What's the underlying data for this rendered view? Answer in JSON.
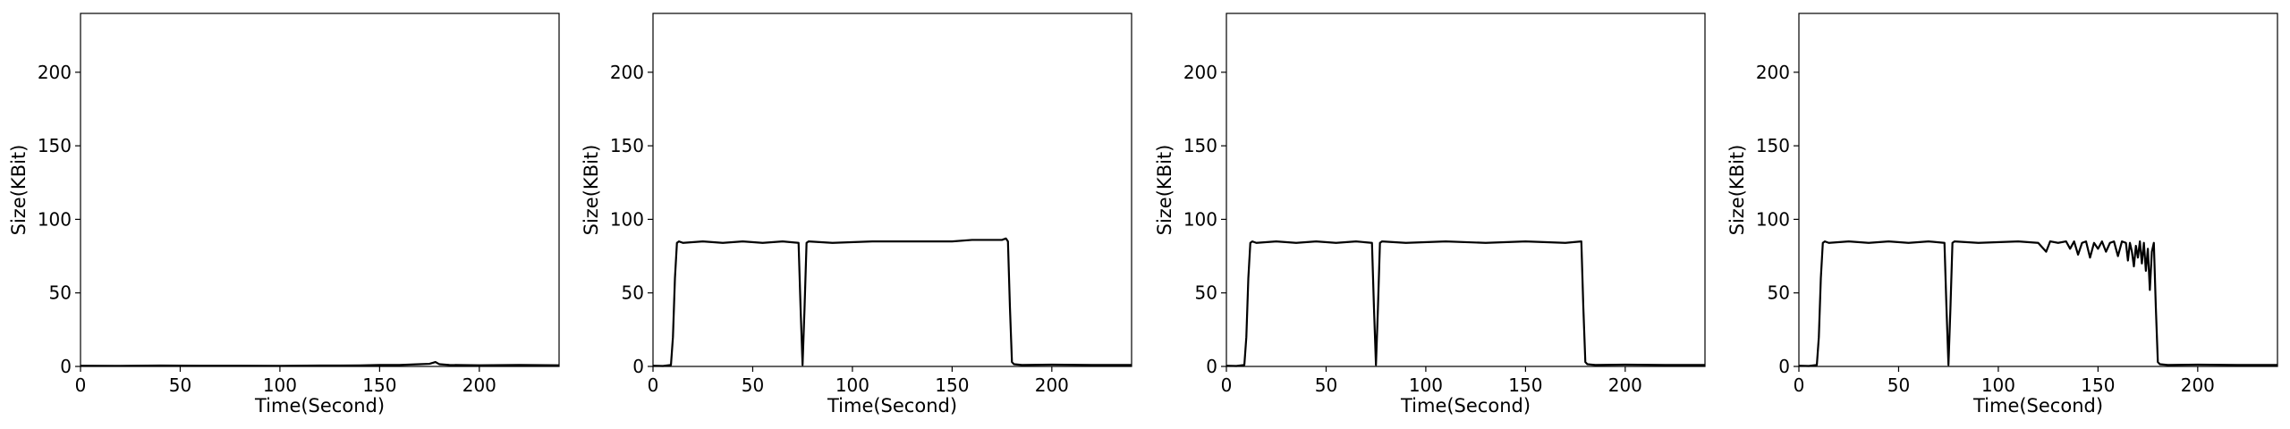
{
  "chart_data": [
    {
      "type": "line",
      "xlabel": "Time(Second)",
      "ylabel": "Size(KBit)",
      "xlim": [
        0,
        240
      ],
      "ylim": [
        0,
        240
      ],
      "xticks": [
        0,
        50,
        100,
        150,
        200
      ],
      "yticks": [
        0,
        50,
        100,
        150,
        200
      ],
      "grid": false,
      "series": [
        {
          "color": "#000000",
          "x": [
            0,
            20,
            40,
            60,
            80,
            100,
            120,
            140,
            150,
            160,
            170,
            175,
            178,
            180,
            185,
            200,
            220,
            240
          ],
          "y": [
            0.5,
            0.4,
            0.6,
            0.5,
            0.5,
            0.4,
            0.6,
            0.7,
            1.0,
            1.0,
            1.5,
            1.8,
            3.0,
            1.5,
            1.0,
            0.8,
            1.0,
            0.8
          ]
        }
      ]
    },
    {
      "type": "line",
      "xlabel": "Time(Second)",
      "ylabel": "Size(KBit)",
      "xlim": [
        0,
        240
      ],
      "ylim": [
        0,
        240
      ],
      "xticks": [
        0,
        50,
        100,
        150,
        200
      ],
      "yticks": [
        0,
        50,
        100,
        150,
        200
      ],
      "grid": false,
      "series": [
        {
          "color": "#000000",
          "x": [
            0,
            5,
            9,
            10,
            11,
            12,
            13,
            15,
            25,
            35,
            45,
            55,
            65,
            73,
            74,
            75,
            76,
            77,
            78,
            90,
            110,
            130,
            150,
            160,
            170,
            175,
            177,
            178,
            179,
            180,
            181,
            185,
            200,
            220,
            240
          ],
          "y": [
            0.5,
            0.3,
            1.0,
            20,
            60,
            84,
            85,
            84,
            85,
            84,
            85,
            84,
            85,
            84,
            40,
            1,
            40,
            84,
            85,
            84,
            85,
            85,
            85,
            86,
            86,
            86,
            87,
            85,
            40,
            3,
            1.5,
            1.0,
            1.2,
            1.0,
            1.0
          ]
        }
      ]
    },
    {
      "type": "line",
      "xlabel": "Time(Second)",
      "ylabel": "Size(KBit)",
      "xlim": [
        0,
        240
      ],
      "ylim": [
        0,
        240
      ],
      "xticks": [
        0,
        50,
        100,
        150,
        200
      ],
      "yticks": [
        0,
        50,
        100,
        150,
        200
      ],
      "grid": false,
      "series": [
        {
          "color": "#000000",
          "x": [
            0,
            5,
            9,
            10,
            11,
            12,
            13,
            15,
            25,
            35,
            45,
            55,
            65,
            73,
            74,
            75,
            76,
            77,
            78,
            90,
            110,
            130,
            150,
            170,
            178,
            179,
            180,
            181,
            185,
            200,
            220,
            240
          ],
          "y": [
            0.5,
            0.3,
            1.0,
            20,
            60,
            84,
            85,
            84,
            85,
            84,
            85,
            84,
            85,
            84,
            40,
            1,
            40,
            84,
            85,
            84,
            85,
            84,
            85,
            84,
            85,
            40,
            3,
            1.5,
            1.0,
            1.2,
            1.0,
            1.0
          ]
        }
      ]
    },
    {
      "type": "line",
      "xlabel": "Time(Second)",
      "ylabel": "Size(KBit)",
      "xlim": [
        0,
        240
      ],
      "ylim": [
        0,
        240
      ],
      "xticks": [
        0,
        50,
        100,
        150,
        200
      ],
      "yticks": [
        0,
        50,
        100,
        150,
        200
      ],
      "grid": false,
      "series": [
        {
          "color": "#000000",
          "x": [
            0,
            5,
            9,
            10,
            11,
            12,
            13,
            15,
            25,
            35,
            45,
            55,
            65,
            73,
            74,
            75,
            76,
            77,
            78,
            90,
            110,
            120,
            124,
            126,
            130,
            134,
            136,
            138,
            140,
            142,
            144,
            146,
            148,
            150,
            152,
            154,
            156,
            158,
            160,
            162,
            164,
            165,
            166,
            167,
            168,
            169,
            170,
            171,
            172,
            173,
            174,
            175,
            176,
            177,
            178,
            179,
            180,
            181,
            185,
            200,
            220,
            240
          ],
          "y": [
            0.5,
            0.3,
            1.0,
            20,
            60,
            84,
            85,
            84,
            85,
            84,
            85,
            84,
            85,
            84,
            40,
            1,
            40,
            84,
            85,
            84,
            85,
            84,
            78,
            85,
            84,
            85,
            80,
            85,
            76,
            84,
            85,
            74,
            84,
            80,
            85,
            78,
            84,
            85,
            75,
            85,
            84,
            72,
            84,
            78,
            68,
            82,
            74,
            85,
            70,
            84,
            65,
            80,
            52,
            78,
            84,
            40,
            3,
            1.5,
            1.0,
            1.2,
            1.0,
            1.0
          ]
        }
      ]
    }
  ]
}
